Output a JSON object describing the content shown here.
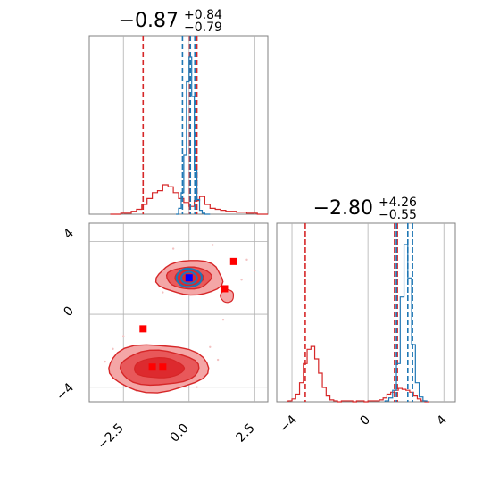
{
  "colors": {
    "red": "#d62728",
    "blue": "#1f77b4",
    "red_marker": "#ff0000",
    "blue_marker": "#0000ff",
    "grid": "#b0b0b0",
    "frame": "#808080",
    "fill_light": "#f4a6a6",
    "fill_mid": "#e8585a",
    "fill_dark": "#dd2a2e"
  },
  "chart_data": [
    {
      "id": "hist-x",
      "type": "histogram",
      "title_main": "−0.87",
      "title_sup": "+0.84",
      "title_sub": "−0.79",
      "xlim": [
        -3.8,
        3.0
      ],
      "grid": true,
      "series": [
        {
          "name": "",
          "color": "red",
          "bins_x": [
            -3.0,
            -2.8,
            -2.6,
            -2.4,
            -2.2,
            -2.0,
            -1.8,
            -1.6,
            -1.4,
            -1.2,
            -1.0,
            -0.8,
            -0.6,
            -0.4,
            -0.2,
            0.0,
            0.2,
            0.4,
            0.6,
            0.8,
            1.0,
            1.2,
            1.4,
            1.6,
            1.8,
            2.0,
            2.2,
            2.4,
            2.6,
            2.8
          ],
          "counts": [
            0,
            0,
            1,
            1,
            3,
            5,
            10,
            16,
            22,
            24,
            30,
            28,
            22,
            16,
            12,
            8,
            14,
            18,
            10,
            6,
            5,
            4,
            3,
            3,
            2,
            2,
            1,
            1,
            0,
            0
          ],
          "quantile_lines": [
            -1.75,
            0.02,
            0.3
          ]
        },
        {
          "name": "",
          "color": "blue",
          "bins_x": [
            -0.5,
            -0.4,
            -0.3,
            -0.2,
            -0.1,
            0.0,
            0.1,
            0.2,
            0.3,
            0.4,
            0.5,
            0.6,
            0.7
          ],
          "counts": [
            0,
            6,
            22,
            60,
            135,
            160,
            120,
            45,
            15,
            4,
            1,
            0,
            0
          ],
          "quantile_lines": [
            -0.25,
            0.05,
            0.22
          ]
        }
      ]
    },
    {
      "id": "hist-y",
      "type": "histogram",
      "title_main": "−2.80",
      "title_sup": "+4.26",
      "title_sub": "−0.55",
      "xlim": [
        -4.8,
        4.6
      ],
      "grid": true,
      "series": [
        {
          "name": "",
          "color": "red",
          "bins_x": [
            -4.2,
            -4.0,
            -3.8,
            -3.6,
            -3.4,
            -3.2,
            -3.0,
            -2.8,
            -2.6,
            -2.4,
            -2.2,
            -2.0,
            -1.8,
            -1.6,
            -1.4,
            -1.2,
            -1.0,
            -0.8,
            -0.6,
            -0.4,
            -0.2,
            0.0,
            0.2,
            0.4,
            0.6,
            0.8,
            1.0,
            1.2,
            1.4,
            1.6,
            1.8,
            2.0,
            2.2,
            2.4,
            2.6,
            2.8,
            3.0
          ],
          "counts": [
            1,
            3,
            8,
            20,
            40,
            55,
            58,
            45,
            30,
            15,
            6,
            2,
            1,
            0,
            1,
            1,
            1,
            0,
            1,
            1,
            0,
            1,
            1,
            1,
            2,
            4,
            8,
            10,
            12,
            14,
            13,
            12,
            10,
            6,
            3,
            1,
            0
          ],
          "quantile_lines": [
            -3.3,
            1.4,
            1.55
          ]
        },
        {
          "name": "",
          "color": "blue",
          "bins_x": [
            0.9,
            1.1,
            1.3,
            1.5,
            1.7,
            1.9,
            2.1,
            2.3,
            2.5,
            2.7,
            2.9
          ],
          "counts": [
            1,
            4,
            12,
            40,
            110,
            165,
            130,
            60,
            20,
            5,
            1
          ],
          "quantile_lines": [
            1.5,
            2.1,
            2.35
          ]
        }
      ]
    },
    {
      "id": "scatter-2d",
      "type": "scatter",
      "xlim": [
        -3.8,
        3.0
      ],
      "ylim": [
        -4.8,
        5.0
      ],
      "grid": true,
      "red_markers": [
        [
          1.7,
          2.9
        ],
        [
          1.35,
          1.4
        ],
        [
          -1.75,
          -0.8
        ],
        [
          -1.4,
          -2.9
        ],
        [
          -1.0,
          -2.9
        ]
      ],
      "blue_markers": [
        [
          0.0,
          2.0
        ]
      ]
    }
  ],
  "axes": {
    "ticks_x": [
      "−2.5",
      "0.0",
      "2.5"
    ],
    "ticks_y_left": [
      "−4",
      "0",
      "4"
    ],
    "ticks_x_right": [
      "−4",
      "0",
      "4"
    ]
  }
}
